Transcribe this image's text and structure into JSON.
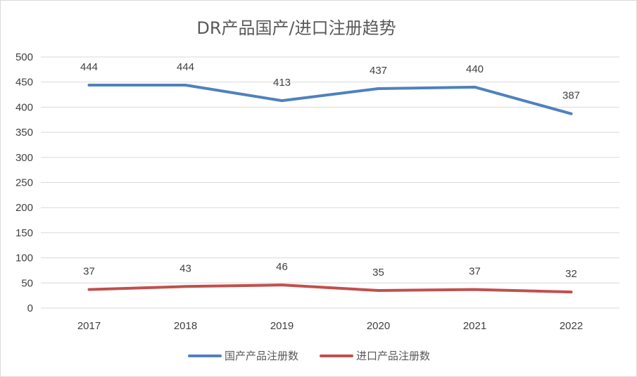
{
  "chart_data": {
    "type": "line",
    "title": "DR产品国产/进口注册趋势",
    "categories": [
      "2017",
      "2018",
      "2019",
      "2020",
      "2021",
      "2022"
    ],
    "ylim": [
      0,
      500
    ],
    "yticks": [
      0,
      50,
      100,
      150,
      200,
      250,
      300,
      350,
      400,
      450,
      500
    ],
    "grid": true,
    "legend_position": "bottom",
    "series": [
      {
        "name": "国产产品注册数",
        "color": "#4F81BD",
        "values": [
          444,
          444,
          413,
          437,
          440,
          387
        ]
      },
      {
        "name": "进口产品注册数",
        "color": "#C0504D",
        "values": [
          37,
          43,
          46,
          35,
          37,
          32
        ]
      }
    ]
  }
}
